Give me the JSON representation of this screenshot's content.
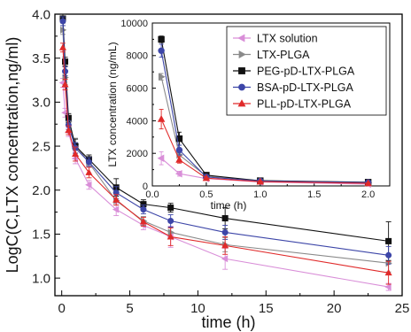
{
  "chart_data": [
    {
      "type": "line",
      "xlabel": "time (h)",
      "ylabel": "LogC(C,LTX concentration,ng/ml)",
      "xlim": [
        -0.5,
        25
      ],
      "ylim": [
        0.8,
        4.0
      ],
      "x_ticks": [
        "0",
        "5",
        "10",
        "15",
        "20",
        "25"
      ],
      "y_ticks": [
        "1.0",
        "1.5",
        "2.0",
        "2.5",
        "3.0",
        "3.5",
        "4.0"
      ],
      "series": [
        {
          "name": "LTX solution",
          "color": "#d98ed8",
          "marker": "triangle-left",
          "x": [
            0.083,
            0.25,
            0.5,
            1,
            2,
            4,
            6,
            8,
            12,
            24
          ],
          "y": [
            3.22,
            2.88,
            2.66,
            2.36,
            2.06,
            1.78,
            1.6,
            1.47,
            1.22,
            0.9
          ],
          "err": [
            0.05,
            0.05,
            0.05,
            0.06,
            0.05,
            0.07,
            0.05,
            0.12,
            0.12,
            0.04
          ]
        },
        {
          "name": "LTX-PLGA",
          "color": "#8a8a8a",
          "marker": "triangle-right",
          "x": [
            0.083,
            0.25,
            0.5,
            1,
            2,
            4,
            6,
            8,
            12,
            24
          ],
          "y": [
            3.82,
            3.28,
            2.78,
            2.52,
            2.31,
            1.88,
            1.65,
            1.52,
            1.38,
            1.17
          ],
          "err": [
            0.05,
            0.08,
            0.05,
            0.07,
            0.05,
            0.05,
            0.05,
            0.06,
            0.08,
            0.1
          ]
        },
        {
          "name": "PEG-pD-LTX-PLGA",
          "color": "#111111",
          "marker": "square",
          "x": [
            0.083,
            0.25,
            0.5,
            1,
            2,
            4,
            6,
            8,
            12,
            24
          ],
          "y": [
            3.95,
            3.46,
            2.82,
            2.5,
            2.35,
            2.03,
            1.84,
            1.8,
            1.68,
            1.42
          ],
          "err": [
            0.05,
            0.05,
            0.05,
            0.08,
            0.05,
            0.1,
            0.05,
            0.05,
            0.12,
            0.22
          ]
        },
        {
          "name": "BSA-pD-LTX-PLGA",
          "color": "#3d46a8",
          "marker": "circle",
          "x": [
            0.083,
            0.25,
            0.5,
            1,
            2,
            4,
            6,
            8,
            12,
            24
          ],
          "y": [
            3.92,
            3.35,
            2.74,
            2.48,
            2.32,
            1.97,
            1.78,
            1.65,
            1.52,
            1.26
          ],
          "err": [
            0.05,
            0.05,
            0.05,
            0.06,
            0.05,
            0.07,
            0.05,
            0.07,
            0.08,
            0.1
          ]
        },
        {
          "name": "PLL-pD-LTX-PLGA",
          "color": "#e02a2a",
          "marker": "triangle-up",
          "x": [
            0.083,
            0.25,
            0.5,
            1,
            2,
            4,
            6,
            8,
            12,
            24
          ],
          "y": [
            3.62,
            3.2,
            2.68,
            2.41,
            2.2,
            1.89,
            1.64,
            1.47,
            1.37,
            1.06
          ],
          "err": [
            0.05,
            0.06,
            0.05,
            0.08,
            0.06,
            0.06,
            0.05,
            0.1,
            0.1,
            0.13
          ]
        }
      ]
    },
    {
      "type": "line",
      "xlabel": "time (h)",
      "ylabel": "LTX concentration (ng/mL)",
      "xlim": [
        0,
        2.2
      ],
      "ylim": [
        0,
        10000
      ],
      "x_ticks": [
        "0.0",
        "0.5",
        "1.0",
        "1.5",
        "2.0"
      ],
      "y_ticks": [
        "0",
        "2000",
        "4000",
        "6000",
        "8000",
        "10000"
      ],
      "legend_position": "top-right",
      "series": [
        {
          "name": "LTX solution",
          "color": "#d98ed8",
          "marker": "triangle-left",
          "x": [
            0.083,
            0.25,
            0.5,
            1,
            2
          ],
          "y": [
            1700,
            750,
            450,
            240,
            110
          ],
          "err": [
            400,
            150,
            80,
            50,
            30
          ]
        },
        {
          "name": "LTX-PLGA",
          "color": "#8a8a8a",
          "marker": "triangle-right",
          "x": [
            0.083,
            0.25,
            0.5,
            1,
            2
          ],
          "y": [
            6700,
            1900,
            600,
            320,
            200
          ],
          "err": [
            200,
            300,
            80,
            50,
            40
          ]
        },
        {
          "name": "PEG-pD-LTX-PLGA",
          "color": "#111111",
          "marker": "square",
          "x": [
            0.083,
            0.25,
            0.5,
            1,
            2
          ],
          "y": [
            9000,
            2900,
            660,
            320,
            230
          ],
          "err": [
            200,
            400,
            80,
            60,
            50
          ]
        },
        {
          "name": "BSA-pD-LTX-PLGA",
          "color": "#3d46a8",
          "marker": "circle",
          "x": [
            0.083,
            0.25,
            0.5,
            1,
            2
          ],
          "y": [
            8300,
            2200,
            550,
            300,
            210
          ],
          "err": [
            400,
            300,
            70,
            50,
            40
          ]
        },
        {
          "name": "PLL-pD-LTX-PLGA",
          "color": "#e02a2a",
          "marker": "triangle-up",
          "x": [
            0.083,
            0.25,
            0.5,
            1,
            2
          ],
          "y": [
            4100,
            1600,
            480,
            260,
            160
          ],
          "err": [
            600,
            200,
            60,
            40,
            30
          ]
        }
      ]
    }
  ]
}
